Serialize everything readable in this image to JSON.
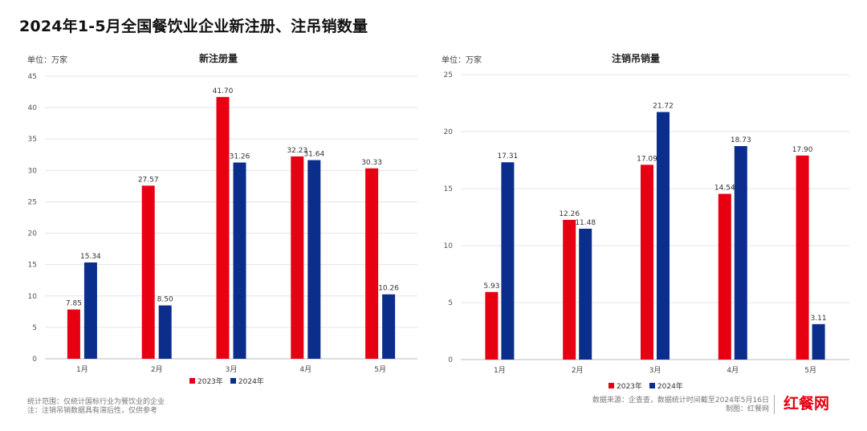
{
  "title": "2024年1-5月全国餐饮业企业新注册、注吊销数量",
  "colors": {
    "y2023": "#e60012",
    "y2024": "#0b2e8c",
    "grid": "#e4e4e4",
    "axis": "#bbbbbb"
  },
  "charts": [
    {
      "id": "left",
      "unit": "单位：万家",
      "title": "新注册量",
      "legend": [
        "2023年",
        "2024年"
      ]
    },
    {
      "id": "right",
      "unit": "单位：万家",
      "title": "注销吊销量",
      "legend": [
        "2023年",
        "2024年"
      ]
    }
  ],
  "chart_data": [
    {
      "type": "bar",
      "title": "新注册量",
      "ylabel": "单位：万家",
      "categories": [
        "1月",
        "2月",
        "3月",
        "4月",
        "5月"
      ],
      "series": [
        {
          "name": "2023年",
          "values": [
            7.85,
            27.57,
            41.7,
            32.23,
            30.33
          ]
        },
        {
          "name": "2024年",
          "values": [
            15.34,
            8.5,
            31.26,
            31.64,
            10.26
          ]
        }
      ],
      "value_labels": [
        [
          "7.85",
          "27.57",
          "41.70",
          "32.23",
          "30.33"
        ],
        [
          "15.34",
          "8.50",
          "31.26",
          "31.64",
          "10.26"
        ]
      ],
      "ylim": [
        0,
        45
      ],
      "yticks": [
        "0",
        "5",
        "10",
        "15",
        "20",
        "25",
        "30",
        "35",
        "40",
        "45"
      ],
      "ytick_values": [
        0,
        5,
        10,
        15,
        20,
        25,
        30,
        35,
        40,
        45
      ],
      "grid": true,
      "legend_position": "bottom"
    },
    {
      "type": "bar",
      "title": "注销吊销量",
      "ylabel": "单位：万家",
      "categories": [
        "1月",
        "2月",
        "3月",
        "4月",
        "5月"
      ],
      "series": [
        {
          "name": "2023年",
          "values": [
            5.93,
            12.26,
            17.09,
            14.54,
            17.9
          ]
        },
        {
          "name": "2024年",
          "values": [
            17.31,
            11.48,
            21.72,
            18.73,
            3.11
          ]
        }
      ],
      "value_labels": [
        [
          "5.93",
          "12.26",
          "17.09",
          "14.54",
          "17.90"
        ],
        [
          "17.31",
          "11.48",
          "21.72",
          "18.73",
          "3.11"
        ]
      ],
      "ylim": [
        0,
        25
      ],
      "yticks": [
        "0",
        "5",
        "10",
        "15",
        "20",
        "25"
      ],
      "ytick_values": [
        0,
        5,
        10,
        15,
        20,
        25
      ],
      "grid": true,
      "legend_position": "bottom"
    }
  ],
  "footer": {
    "left_line1": "统计范围：仅统计国标行业为餐饮业的企业",
    "left_line2": "注：注销吊销数据具有滞后性，仅供参考",
    "right_line1": "数据来源：企查查，数据统计时间截至2024年5月16日",
    "right_line2": "制图：红餐网",
    "brand": "红餐网"
  }
}
